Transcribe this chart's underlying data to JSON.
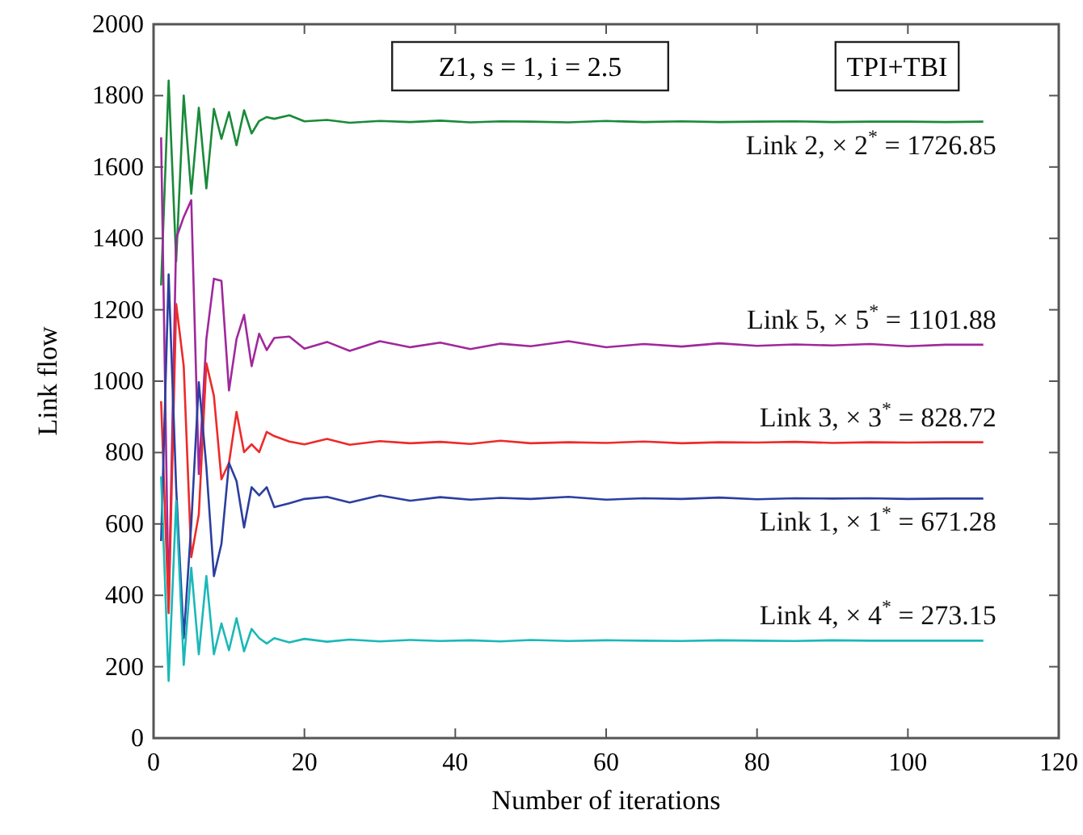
{
  "chart_data": {
    "type": "line",
    "xlabel": "Number of iterations",
    "ylabel": "Link flow",
    "x": [
      1,
      2,
      3,
      4,
      5,
      6,
      7,
      8,
      9,
      10,
      11,
      12,
      13,
      14,
      15,
      16,
      18,
      20,
      23,
      26,
      30,
      34,
      38,
      42,
      46,
      50,
      55,
      60,
      65,
      70,
      75,
      80,
      85,
      90,
      95,
      100,
      105,
      110
    ],
    "xlim": [
      0,
      120
    ],
    "xticks": [
      0,
      20,
      40,
      60,
      80,
      100,
      120
    ],
    "ylim": [
      0,
      2000
    ],
    "yticks": [
      0,
      200,
      400,
      600,
      800,
      1000,
      1200,
      1400,
      1600,
      1800,
      2000
    ],
    "grid": false,
    "marker": "none",
    "line_style": "solid",
    "annotations": [
      "Z1, s = 1, i = 2.5",
      "TPI+TBI"
    ],
    "series": [
      {
        "name": "Link 2, × 2$^{*}$ = 1726.85",
        "color": "#1a8a3a",
        "values": [
          1268,
          1842,
          1336,
          1800,
          1525,
          1766,
          1540,
          1763,
          1679,
          1754,
          1661,
          1759,
          1694,
          1729,
          1740,
          1735,
          1745,
          1728,
          1732,
          1724,
          1729,
          1726,
          1730,
          1725,
          1728,
          1727,
          1725,
          1729,
          1726,
          1728,
          1726,
          1727,
          1728,
          1726,
          1727,
          1727,
          1726,
          1727
        ]
      },
      {
        "name": "Link 5, × 5$^{*}$ = 1101.88",
        "color": "#a0289c",
        "values": [
          1683,
          364,
          1400,
          1460,
          1507,
          740,
          1118,
          1287,
          1281,
          974,
          1118,
          1186,
          1042,
          1133,
          1087,
          1121,
          1125,
          1091,
          1110,
          1085,
          1112,
          1095,
          1108,
          1090,
          1105,
          1098,
          1112,
          1095,
          1104,
          1097,
          1106,
          1099,
          1103,
          1100,
          1104,
          1098,
          1102,
          1102
        ]
      },
      {
        "name": "Link 3, × 3$^{*}$ = 828.72",
        "color": "#ee2a2a",
        "values": [
          944,
          350,
          1216,
          1042,
          507,
          627,
          1050,
          959,
          725,
          771,
          914,
          801,
          823,
          801,
          858,
          846,
          831,
          823,
          838,
          822,
          832,
          826,
          830,
          824,
          833,
          826,
          829,
          827,
          831,
          826,
          829,
          828,
          830,
          827,
          829,
          828,
          829,
          829
        ]
      },
      {
        "name": "Link 1, × 1$^{*}$ = 671.28",
        "color": "#2b3fa0",
        "values": [
          552,
          1299,
          700,
          280,
          600,
          997,
          760,
          454,
          544,
          771,
          720,
          590,
          703,
          680,
          703,
          647,
          658,
          670,
          676,
          660,
          680,
          665,
          675,
          668,
          673,
          670,
          676,
          668,
          672,
          670,
          674,
          669,
          672,
          671,
          672,
          670,
          671,
          671
        ]
      },
      {
        "name": "Link 4, × 4$^{*}$ = 273.15",
        "color": "#1ab8b8",
        "values": [
          733,
          160,
          665,
          205,
          477,
          235,
          454,
          235,
          321,
          246,
          336,
          243,
          306,
          280,
          265,
          280,
          268,
          278,
          270,
          276,
          271,
          275,
          272,
          274,
          271,
          275,
          272,
          274,
          273,
          272,
          274,
          273,
          272,
          274,
          273,
          273,
          273,
          273
        ]
      }
    ]
  }
}
